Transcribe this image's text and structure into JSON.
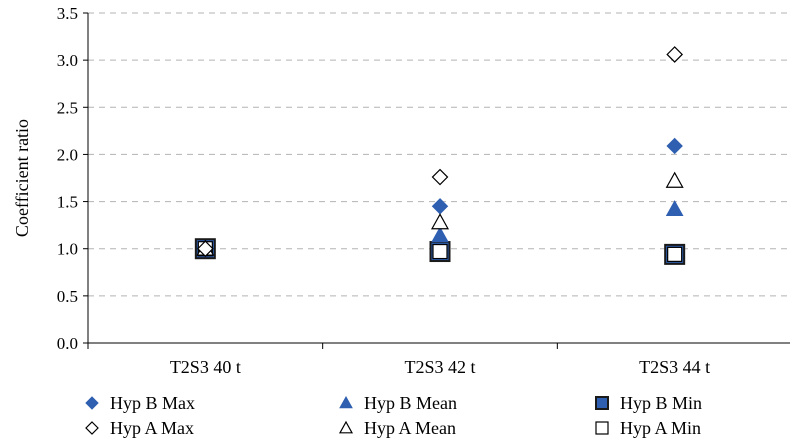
{
  "chart_data": {
    "type": "scatter",
    "title": "",
    "xlabel": "",
    "ylabel": "Coefficient ratio",
    "ylim": [
      0,
      3.5
    ],
    "ytick_step": 0.5,
    "yticks": [
      "0.0",
      "0.5",
      "1.0",
      "1.5",
      "2.0",
      "2.5",
      "3.0",
      "3.5"
    ],
    "categories": [
      "T2S3 40 t",
      "T2S3 42 t",
      "T2S3 44 t"
    ],
    "grid": "horizontal-dashed",
    "legend_position": "bottom",
    "series": [
      {
        "name": "Hyp B Max",
        "marker": "diamond",
        "filled": true,
        "color": "#2E5FB0",
        "values": [
          1.0,
          1.45,
          2.09
        ]
      },
      {
        "name": "Hyp B Mean",
        "marker": "triangle",
        "filled": true,
        "color": "#2E5FB0",
        "values": [
          1.0,
          1.14,
          1.42
        ]
      },
      {
        "name": "Hyp B Min",
        "marker": "square",
        "filled": true,
        "color": "#2E5FB0",
        "values": [
          1.0,
          0.97,
          0.94
        ]
      },
      {
        "name": "Hyp A Max",
        "marker": "diamond",
        "filled": false,
        "color": "#000000",
        "values": [
          1.0,
          1.76,
          3.06
        ]
      },
      {
        "name": "Hyp A Mean",
        "marker": "triangle",
        "filled": false,
        "color": "#000000",
        "values": [
          1.0,
          1.28,
          1.72
        ]
      },
      {
        "name": "Hyp A Min",
        "marker": "square",
        "filled": false,
        "color": "#000000",
        "values": [
          1.0,
          0.97,
          0.94
        ]
      }
    ]
  }
}
